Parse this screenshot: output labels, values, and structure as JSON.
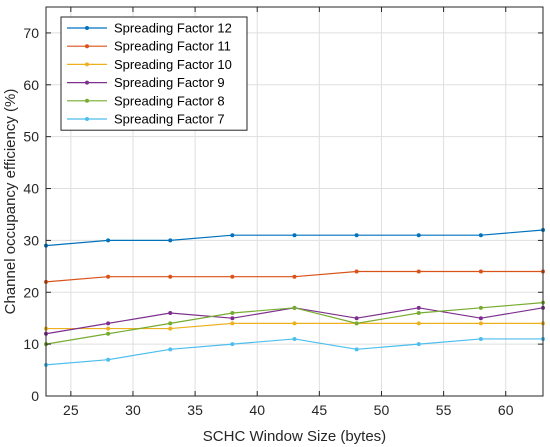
{
  "chart_data": {
    "type": "line",
    "title": "",
    "xlabel": "SCHC Window Size (bytes)",
    "ylabel": "Channel occupancy efficiency (%)",
    "xlim": [
      23,
      63
    ],
    "ylim": [
      0,
      75
    ],
    "xticks": [
      25,
      30,
      35,
      40,
      45,
      50,
      55,
      60
    ],
    "yticks": [
      0,
      10,
      20,
      30,
      40,
      50,
      60,
      70
    ],
    "grid": true,
    "legend_position": "top-left",
    "x": [
      23,
      28,
      33,
      38,
      43,
      48,
      53,
      58,
      63
    ],
    "series": [
      {
        "name": "Spreading Factor 12",
        "color": "#0072BD",
        "values": [
          29,
          30,
          30,
          31,
          31,
          31,
          31,
          31,
          32
        ]
      },
      {
        "name": "Spreading Factor 11",
        "color": "#D95319",
        "values": [
          22,
          23,
          23,
          23,
          23,
          24,
          24,
          24,
          24
        ]
      },
      {
        "name": "Spreading Factor 10",
        "color": "#EDB120",
        "values": [
          13,
          13,
          13,
          14,
          14,
          14,
          14,
          14,
          14
        ]
      },
      {
        "name": "Spreading Factor 9",
        "color": "#7E2F8E",
        "values": [
          12,
          14,
          16,
          15,
          17,
          15,
          17,
          15,
          17
        ]
      },
      {
        "name": "Spreading Factor 8",
        "color": "#77AC30",
        "values": [
          10,
          12,
          14,
          16,
          17,
          14,
          16,
          17,
          18
        ]
      },
      {
        "name": "Spreading Factor 7",
        "color": "#4DBEEE",
        "values": [
          6,
          7,
          9,
          10,
          11,
          9,
          10,
          11,
          11
        ]
      }
    ]
  }
}
